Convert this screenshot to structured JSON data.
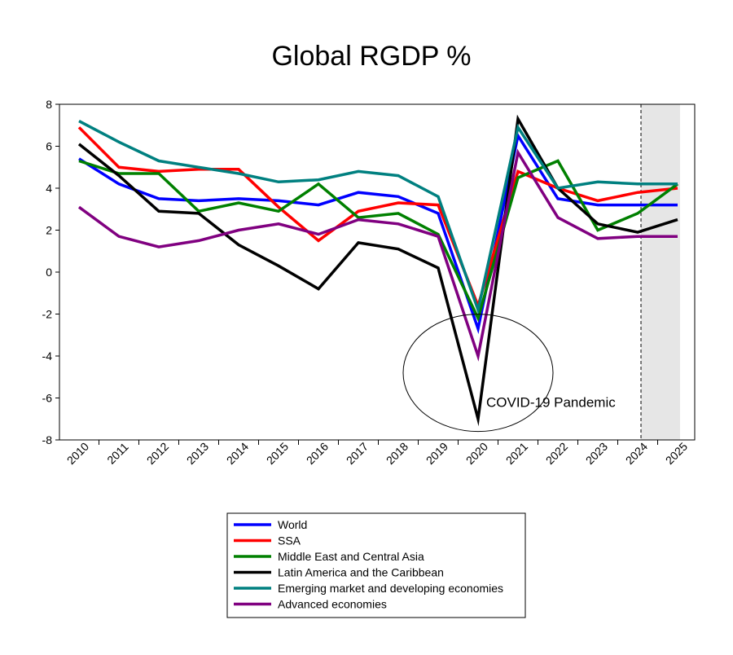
{
  "chart_data": {
    "type": "line",
    "title": "Global RGDP %",
    "xlabel": "",
    "ylabel": "",
    "ylim": [
      -8,
      8
    ],
    "yticks": [
      8,
      6,
      4,
      2,
      0,
      -2,
      -4,
      -6,
      -8
    ],
    "x": [
      "2010",
      "2011",
      "2012",
      "2013",
      "2014",
      "2015",
      "2016",
      "2017",
      "2018",
      "2019",
      "2020",
      "2021",
      "2022",
      "2023",
      "2024",
      "2025"
    ],
    "forecast_start": "2024",
    "grid": false,
    "legend_position": "bottom",
    "annotation": {
      "text": "COVID-19 Pandemic",
      "x": "2020",
      "y": -6.2
    },
    "series": [
      {
        "name": "World",
        "color": "#0000ff",
        "values": [
          5.4,
          4.2,
          3.5,
          3.4,
          3.5,
          3.4,
          3.2,
          3.8,
          3.6,
          2.8,
          -2.7,
          6.5,
          3.5,
          3.2,
          3.2,
          3.2
        ]
      },
      {
        "name": "SSA",
        "color": "#ff0000",
        "values": [
          6.9,
          5.0,
          4.8,
          4.9,
          4.9,
          3.1,
          1.5,
          2.9,
          3.3,
          3.2,
          -1.6,
          4.8,
          4.0,
          3.4,
          3.8,
          4.0
        ]
      },
      {
        "name": "Middle East and Central Asia",
        "color": "#008000",
        "values": [
          5.3,
          4.7,
          4.7,
          2.9,
          3.3,
          2.9,
          4.2,
          2.6,
          2.8,
          1.8,
          -2.2,
          4.5,
          5.3,
          2.0,
          2.8,
          4.2
        ]
      },
      {
        "name": "Latin America and the Caribbean",
        "color": "#000000",
        "values": [
          6.1,
          4.6,
          2.9,
          2.8,
          1.3,
          0.3,
          -0.8,
          1.4,
          1.1,
          0.2,
          -7.0,
          7.3,
          4.0,
          2.3,
          1.9,
          2.5
        ]
      },
      {
        "name": "Emerging market and developing economies",
        "color": "#008080",
        "values": [
          7.2,
          6.2,
          5.3,
          5.0,
          4.7,
          4.3,
          4.4,
          4.8,
          4.6,
          3.6,
          -1.8,
          6.9,
          4.0,
          4.3,
          4.2,
          4.2
        ]
      },
      {
        "name": "Advanced economies",
        "color": "#800080",
        "values": [
          3.1,
          1.7,
          1.2,
          1.5,
          2.0,
          2.3,
          1.8,
          2.5,
          2.3,
          1.7,
          -4.0,
          5.7,
          2.6,
          1.6,
          1.7,
          1.7
        ]
      }
    ]
  }
}
